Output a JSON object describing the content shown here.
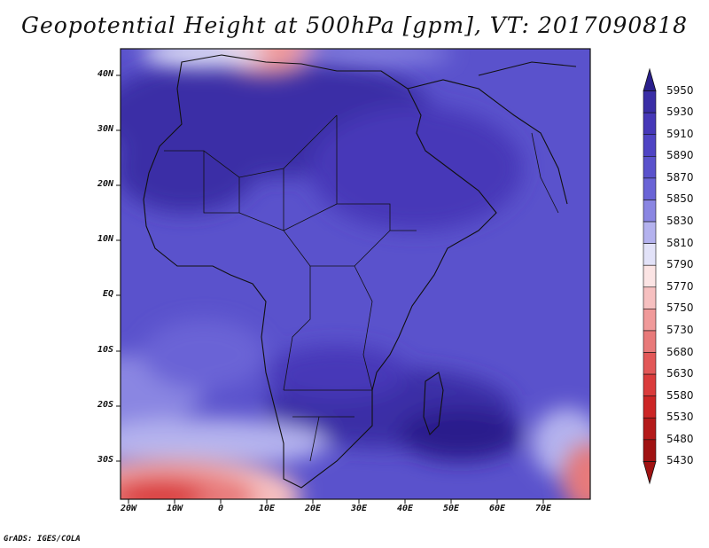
{
  "title": "Geopotential Height at 500hPa [gpm], VT: 2017090818",
  "credit": "GrADS: IGES/COLA",
  "map": {
    "y_ticks": [
      "40N",
      "30N",
      "20N",
      "10N",
      "EQ",
      "10S",
      "20S",
      "30S"
    ],
    "x_ticks": [
      "20W",
      "10W",
      "0",
      "10E",
      "20E",
      "30E",
      "40E",
      "50E",
      "60E",
      "70E"
    ]
  },
  "colorbar": {
    "levels": [
      "5950",
      "5930",
      "5910",
      "5890",
      "5870",
      "5850",
      "5830",
      "5810",
      "5790",
      "5770",
      "5750",
      "5730",
      "5680",
      "5630",
      "5580",
      "5530",
      "5480",
      "5430"
    ],
    "colors": [
      "#2a1f8c",
      "#3a2ea6",
      "#4638b8",
      "#4f44c4",
      "#5a52cc",
      "#6a64d6",
      "#8a86e2",
      "#b4b2ee",
      "#e2e2f8",
      "#fbe4e4",
      "#f6c0c0",
      "#f09a9a",
      "#e87a7a",
      "#e25858",
      "#da3c3c",
      "#cc2626",
      "#b41a1a",
      "#a01212"
    ]
  }
}
